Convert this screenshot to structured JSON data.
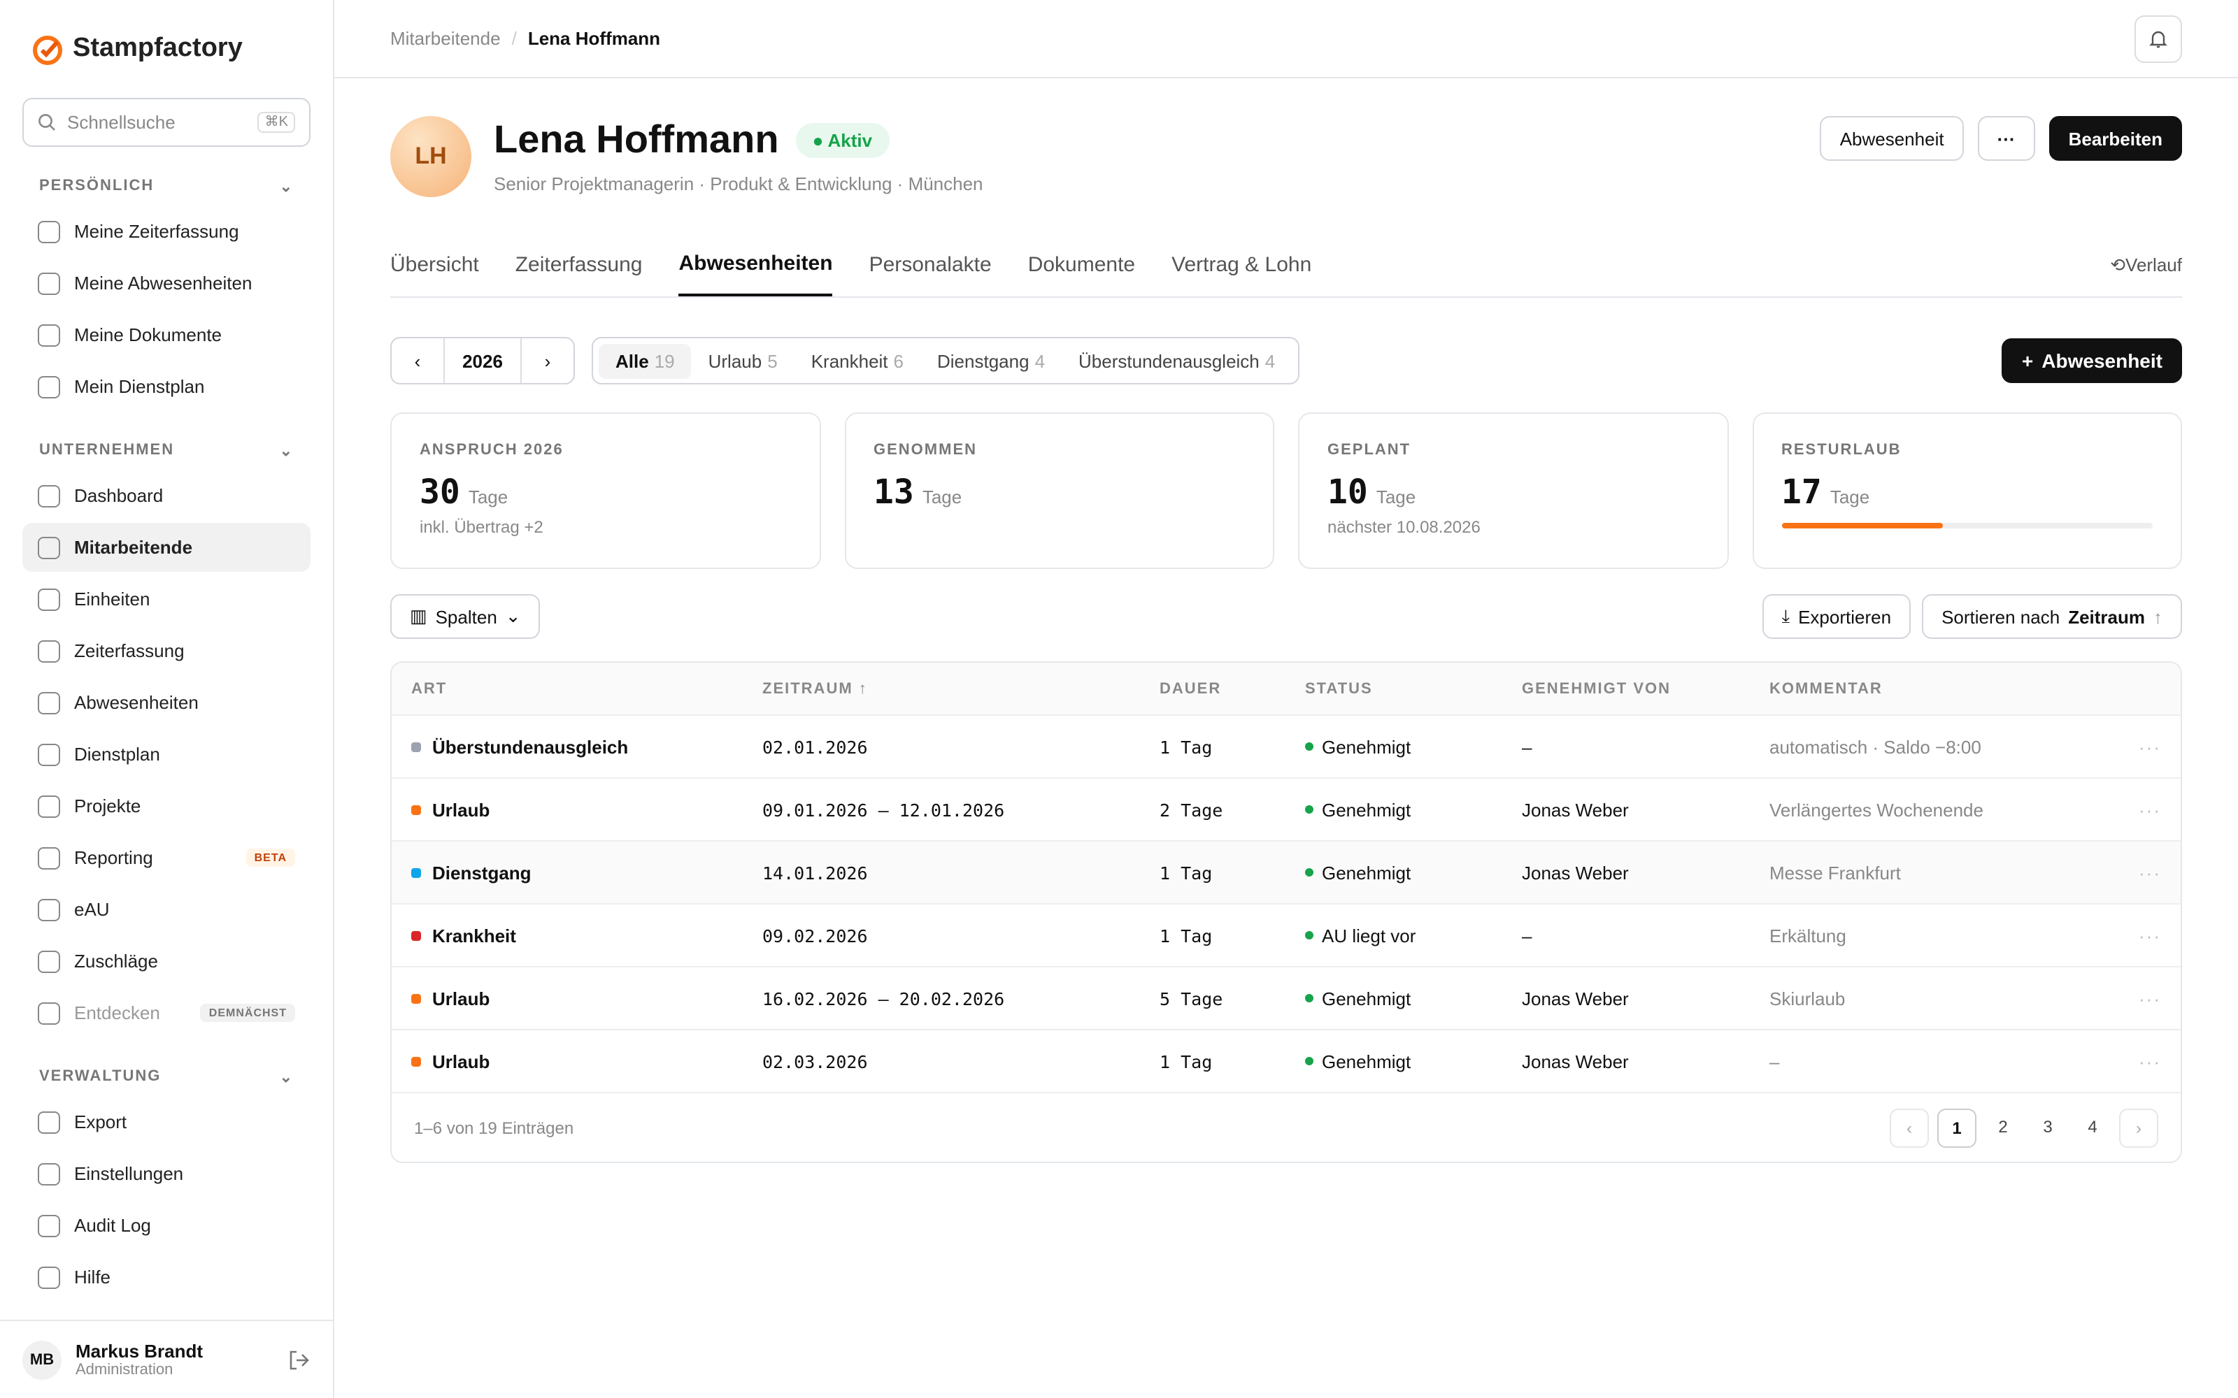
{
  "brand": "Stampfactory",
  "search": {
    "placeholder": "Schnellsuche",
    "shortcut": "⌘K"
  },
  "nav": [
    {
      "title": "PERSÖNLICH",
      "items": [
        {
          "label": "Meine Zeiterfassung"
        },
        {
          "label": "Meine Abwesenheiten"
        },
        {
          "label": "Meine Dokumente"
        },
        {
          "label": "Mein Dienstplan"
        }
      ]
    },
    {
      "title": "UNTERNEHMEN",
      "items": [
        {
          "label": "Dashboard"
        },
        {
          "label": "Mitarbeitende",
          "active": true
        },
        {
          "label": "Einheiten"
        },
        {
          "label": "Zeiterfassung"
        },
        {
          "label": "Abwesenheiten"
        },
        {
          "label": "Dienstplan"
        },
        {
          "label": "Projekte"
        },
        {
          "label": "Reporting",
          "badge": "BETA"
        },
        {
          "label": "eAU"
        },
        {
          "label": "Zuschläge"
        },
        {
          "label": "Entdecken",
          "badge": "DEMNÄCHST"
        }
      ]
    },
    {
      "title": "VERWALTUNG",
      "items": [
        {
          "label": "Export"
        },
        {
          "label": "Einstellungen"
        },
        {
          "label": "Audit Log"
        },
        {
          "label": "Hilfe"
        }
      ]
    }
  ],
  "user": {
    "initials": "MB",
    "name": "Markus Brandt",
    "role": "Administration"
  },
  "breadcrumb": [
    "Mitarbeitende",
    "Lena Hoffmann"
  ],
  "profile": {
    "initials": "LH",
    "name": "Lena Hoffmann",
    "status": "Aktiv",
    "meta": [
      "Senior Projektmanagerin",
      "Produkt & Entwicklung",
      "München"
    ],
    "secondary_action": "Abwesenheit",
    "primary_action": "Bearbeiten"
  },
  "tabs": {
    "items": [
      "Übersicht",
      "Zeiterfassung",
      "Abwesenheiten",
      "Personalakte",
      "Dokumente",
      "Vertrag & Lohn"
    ],
    "active": 2,
    "history": "Verlauf"
  },
  "year": 2026,
  "filters": [
    {
      "label": "Alle",
      "count": 19
    },
    {
      "label": "Urlaub",
      "count": 5
    },
    {
      "label": "Krankheit",
      "count": 6
    },
    {
      "label": "Dienstgang",
      "count": 4
    },
    {
      "label": "Überstundenausgleich",
      "count": 4
    }
  ],
  "add_button": "Abwesenheit",
  "stats": [
    {
      "label": "ANSPRUCH 2026",
      "value": 30,
      "unit": "Tage",
      "note": "inkl. Übertrag +2"
    },
    {
      "label": "GENOMMEN",
      "value": 13,
      "unit": "Tage"
    },
    {
      "label": "GEPLANT",
      "value": 10,
      "unit": "Tage",
      "note": "nächster 10.08.2026"
    },
    {
      "label": "RESTURLAUB",
      "value": 17,
      "unit": "Tage"
    }
  ],
  "toolbar": {
    "columns": "Spalten",
    "export": "Exportieren",
    "sort_label": "Sortieren nach",
    "sort_field": "Zeitraum"
  },
  "table": {
    "headers": [
      "ART",
      "ZEITRAUM",
      "DAUER",
      "STATUS",
      "GENEHMIGT VON",
      "KOMMENTAR"
    ],
    "rows": [
      {
        "type": "Überstundenausgleich",
        "color": "#9ca3af",
        "period": "02.01.2026",
        "duration": "1 Tag",
        "status": "Genehmigt",
        "approver": "–",
        "comment": "automatisch · Saldo −8:00"
      },
      {
        "type": "Urlaub",
        "color": "#f97316",
        "period": "09.01.2026 – 12.01.2026",
        "duration": "2 Tage",
        "status": "Genehmigt",
        "approver": "Jonas Weber",
        "comment": "Verlängertes Wochenende"
      },
      {
        "type": "Dienstgang",
        "color": "#0ea5e9",
        "period": "14.01.2026",
        "duration": "1 Tag",
        "status": "Genehmigt",
        "approver": "Jonas Weber",
        "comment": "Messe Frankfurt"
      },
      {
        "type": "Krankheit",
        "color": "#dc2626",
        "period": "09.02.2026",
        "duration": "1 Tag",
        "status": "AU liegt vor",
        "approver": "–",
        "comment": "Erkältung"
      },
      {
        "type": "Urlaub",
        "color": "#f97316",
        "period": "16.02.2026 – 20.02.2026",
        "duration": "5 Tage",
        "status": "Genehmigt",
        "approver": "Jonas Weber",
        "comment": "Skiurlaub"
      },
      {
        "type": "Urlaub",
        "color": "#f97316",
        "period": "02.03.2026",
        "duration": "1 Tag",
        "status": "Genehmigt",
        "approver": "Jonas Weber",
        "comment": "–"
      }
    ],
    "summary": "1–6 von 19 Einträgen",
    "pages": [
      1,
      2,
      3,
      4
    ],
    "current_page": 1
  }
}
